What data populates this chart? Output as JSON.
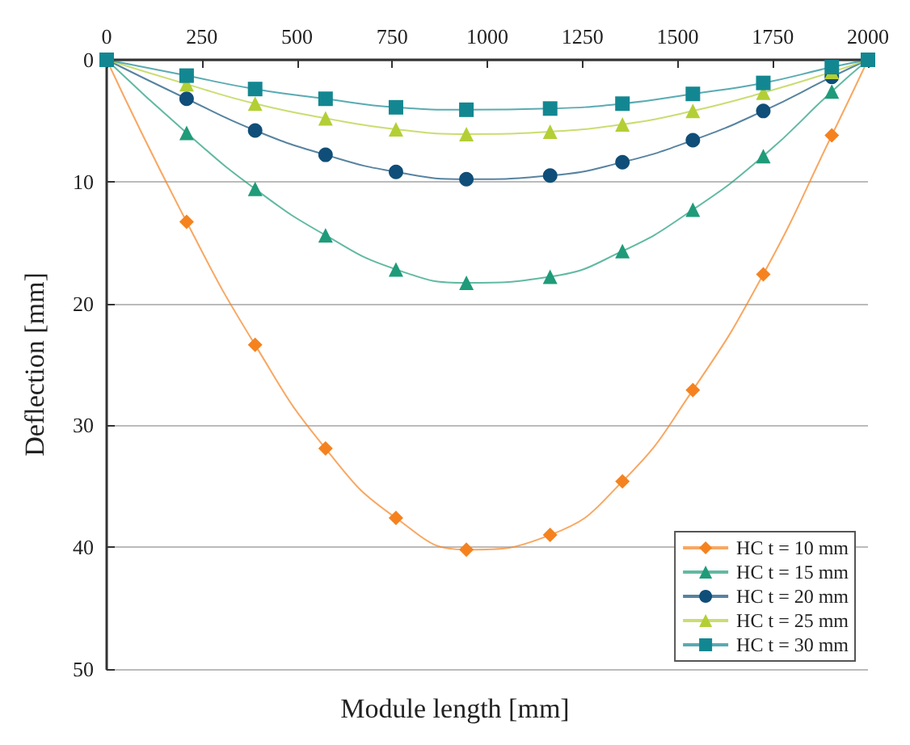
{
  "chart_data": {
    "type": "line",
    "xlabel": "Module length [mm]",
    "ylabel": "Deflection [mm]",
    "x": [
      0,
      210,
      390,
      575,
      760,
      945,
      1165,
      1355,
      1540,
      1725,
      1905,
      2000
    ],
    "xlim": [
      0,
      2000
    ],
    "xticks": [
      0,
      250,
      500,
      750,
      1000,
      1250,
      1500,
      1750,
      2000
    ],
    "ylim": [
      50,
      0
    ],
    "yticks": [
      0,
      10,
      20,
      30,
      40,
      50
    ],
    "grid": "y",
    "legend": "bottom right",
    "series": [
      {
        "name": "HC t = 10 mm",
        "color": "#f5821f",
        "marker": "diamond",
        "values": [
          0,
          13.3,
          23.4,
          31.9,
          37.6,
          40.2,
          39.0,
          34.6,
          27.1,
          17.6,
          6.2,
          0
        ]
      },
      {
        "name": "HC t = 15 mm",
        "color": "#1f9b7a",
        "marker": "triangle",
        "values": [
          0,
          6.0,
          10.6,
          14.4,
          17.2,
          18.3,
          17.8,
          15.7,
          12.3,
          7.9,
          2.6,
          0
        ]
      },
      {
        "name": "HC t = 20 mm",
        "color": "#0f4e78",
        "marker": "circle",
        "values": [
          0,
          3.2,
          5.8,
          7.8,
          9.2,
          9.8,
          9.5,
          8.4,
          6.6,
          4.2,
          1.4,
          0
        ]
      },
      {
        "name": "HC t = 25 mm",
        "color": "#b3cf35",
        "marker": "triangle",
        "values": [
          0,
          2.0,
          3.6,
          4.8,
          5.7,
          6.1,
          5.9,
          5.3,
          4.2,
          2.7,
          1.0,
          0
        ]
      },
      {
        "name": "HC t = 30 mm",
        "color": "#138791",
        "marker": "square",
        "values": [
          0,
          1.3,
          2.4,
          3.2,
          3.9,
          4.1,
          4.0,
          3.6,
          2.8,
          1.9,
          0.6,
          0
        ]
      }
    ]
  }
}
